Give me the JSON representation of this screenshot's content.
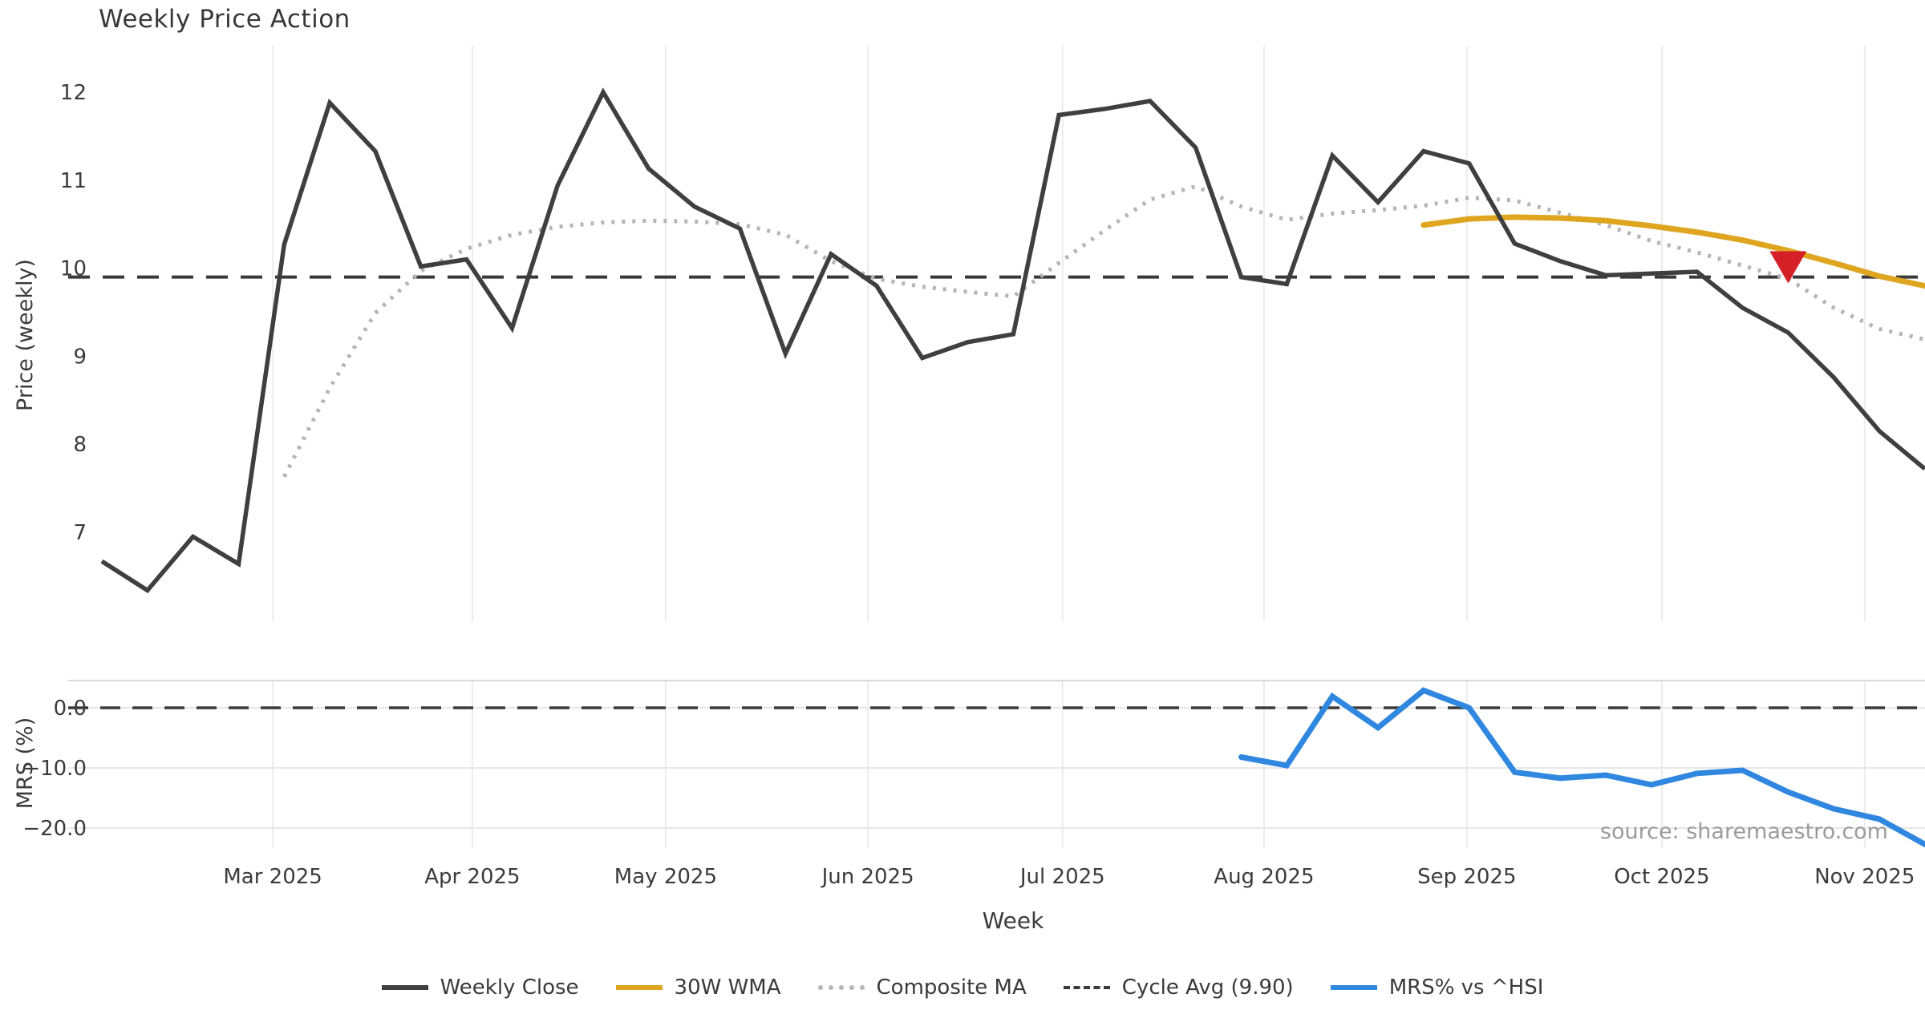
{
  "title": "Weekly Price Action",
  "source_note": "source: sharemaestro.com",
  "colors": {
    "close_line": "#3f3f3f",
    "wma_line": "#dfa51e",
    "composite_line": "#b5b5b5",
    "cycle_line": "#3a3a3a",
    "mrs_line": "#2f87e0",
    "marker_red": "#d42026",
    "month_grid": "#ececec",
    "panel_grid": "#e7e7e7",
    "panel_spine": "#d9d9d9",
    "tick_text": "#3b3b3b",
    "muted_text": "#9b9b9b"
  },
  "chart_data": {
    "type": "line",
    "x_axis": {
      "label": "Week",
      "months": [
        {
          "label": "Mar 2025",
          "week": 3.75
        },
        {
          "label": "Apr 2025",
          "week": 8.13
        },
        {
          "label": "May 2025",
          "week": 12.37
        },
        {
          "label": "Jun 2025",
          "week": 16.81
        },
        {
          "label": "Jul 2025",
          "week": 21.08
        },
        {
          "label": "Aug 2025",
          "week": 25.5
        },
        {
          "label": "Sep 2025",
          "week": 29.95
        },
        {
          "label": "Oct 2025",
          "week": 34.23
        },
        {
          "label": "Nov 2025",
          "week": 38.68
        }
      ],
      "weeks_total": 41
    },
    "top_panel": {
      "ylabel": "Price (weekly)",
      "yticks": [
        12,
        11,
        10,
        9,
        8,
        7
      ],
      "ylim": [
        5.95,
        12.52
      ],
      "cycle_avg": 9.9,
      "series": [
        {
          "name": "Weekly Close",
          "style": "solid",
          "color": "#3f3f3f",
          "start_week": 0,
          "values": [
            6.67,
            6.34,
            6.95,
            6.64,
            10.27,
            11.88,
            11.33,
            10.02,
            10.1,
            9.32,
            10.94,
            12.0,
            11.13,
            10.7,
            10.45,
            9.03,
            10.16,
            9.8,
            8.98,
            9.16,
            9.25,
            11.74,
            11.81,
            11.9,
            11.37,
            9.9,
            9.82,
            11.28,
            10.75,
            11.33,
            11.19,
            10.28,
            10.08,
            9.92,
            9.94,
            9.96,
            9.55,
            9.27,
            8.76,
            8.15,
            7.72
          ]
        },
        {
          "name": "Composite MA",
          "style": "dotted",
          "color": "#b5b5b5",
          "start_week": 4,
          "values": [
            7.63,
            8.64,
            9.49,
            9.97,
            10.22,
            10.38,
            10.47,
            10.52,
            10.54,
            10.53,
            10.5,
            10.38,
            10.08,
            9.88,
            9.79,
            9.73,
            9.68,
            10.06,
            10.43,
            10.78,
            10.93,
            10.7,
            10.55,
            10.62,
            10.66,
            10.71,
            10.8,
            10.77,
            10.63,
            10.49,
            10.31,
            10.18,
            10.03,
            9.88,
            9.55,
            9.31,
            9.19
          ]
        },
        {
          "name": "30W WMA",
          "style": "solid",
          "color": "#dfa51e",
          "start_week": 29,
          "values": [
            10.49,
            10.56,
            10.58,
            10.57,
            10.54,
            10.48,
            10.41,
            10.32,
            10.2,
            10.06,
            9.91,
            9.8
          ]
        }
      ],
      "marker": {
        "name": "sell-signal",
        "shape": "triangle-down",
        "color": "#d42026",
        "week": 37,
        "value": 10.02
      }
    },
    "bottom_panel": {
      "ylabel": "MRS (%)",
      "yticks": [
        0,
        -10,
        -20
      ],
      "ytick_labels": [
        "0.0",
        "−10.0",
        "−20.0"
      ],
      "ylim": [
        4.5,
        -23.6
      ],
      "zero_line": 0.0,
      "series": [
        {
          "name": "MRS% vs ^HSI",
          "style": "solid",
          "color": "#2f87e0",
          "start_week": 25,
          "values": [
            -8.2,
            -9.6,
            1.9,
            -3.3,
            2.9,
            0.0,
            -10.7,
            -11.7,
            -11.2,
            -12.8,
            -10.9,
            -10.4,
            -14.0,
            -16.8,
            -18.5,
            -22.7
          ]
        }
      ]
    }
  },
  "legend": [
    {
      "label": "Weekly Close",
      "style": "solid",
      "color": "#3f3f3f"
    },
    {
      "label": "30W WMA",
      "style": "solid",
      "color": "#dfa51e"
    },
    {
      "label": "Composite MA",
      "style": "dotted",
      "color": "#b5b5b5"
    },
    {
      "label": "Cycle Avg (9.90)",
      "style": "dashed",
      "color": "#3a3a3a"
    },
    {
      "label": "MRS% vs ^HSI",
      "style": "solid",
      "color": "#2f87e0"
    }
  ]
}
